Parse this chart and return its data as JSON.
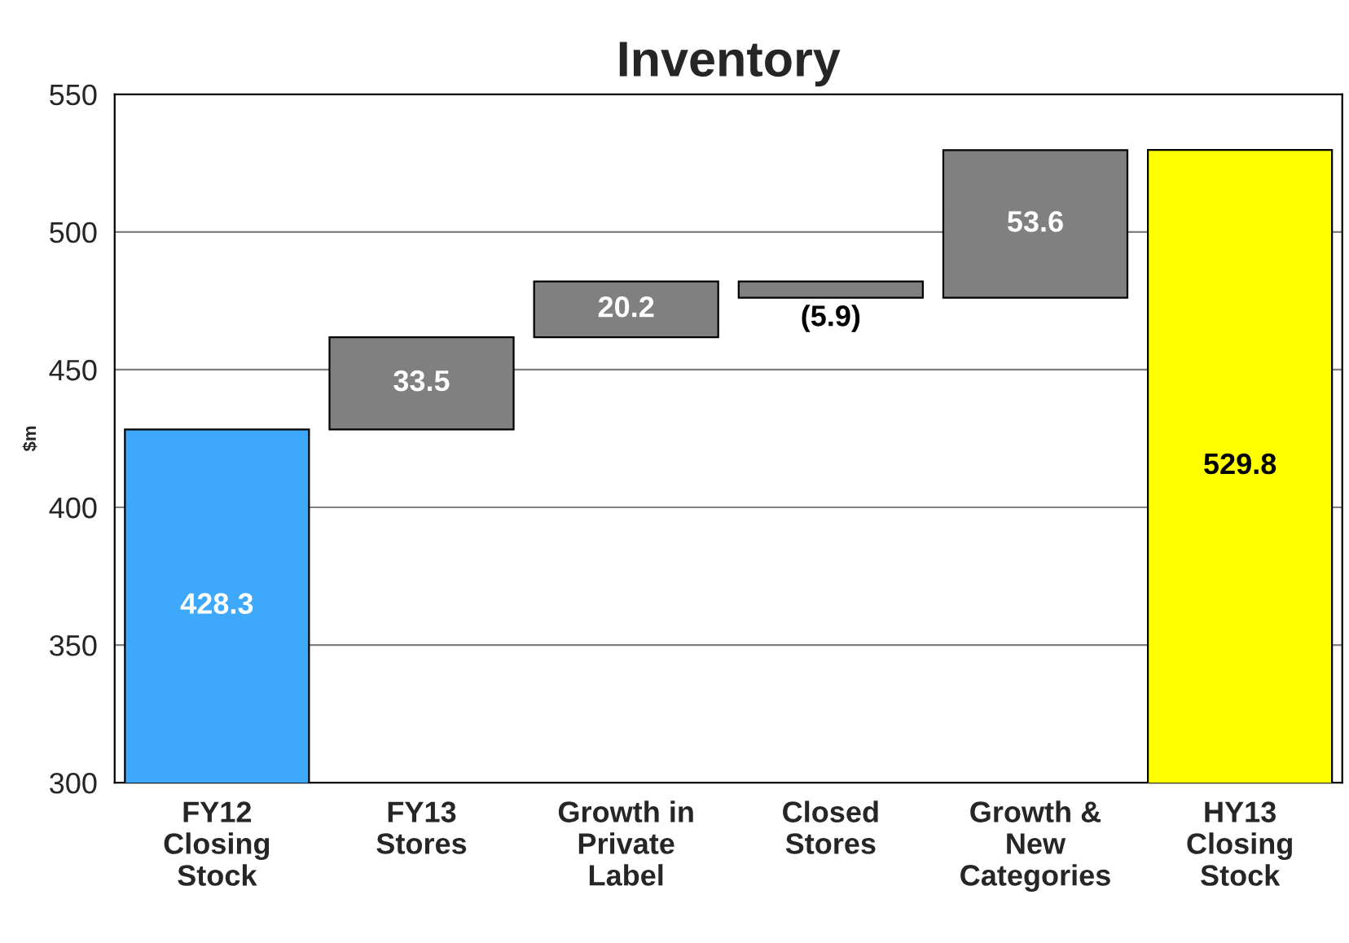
{
  "chart_data": {
    "type": "bar",
    "title": "Inventory",
    "ylabel": "$m",
    "categories": [
      "FY12\nClosing\nStock",
      "FY13\nStores",
      "Growth in\nPrivate\nLabel",
      "Closed\nStores",
      "Growth &\nNew\nCategories",
      "HY13\nClosing\nStock"
    ],
    "values": [
      428.3,
      33.5,
      20.2,
      -5.9,
      53.6,
      529.8
    ],
    "base": [
      0,
      428.3,
      461.8,
      482.0,
      476.1,
      0
    ],
    "value_labels": [
      "428.3",
      "33.5",
      "20.2",
      "(5.9)",
      "53.6",
      "529.8"
    ],
    "colors": [
      "#3ea8fb",
      "#808080",
      "#808080",
      "#808080",
      "#808080",
      "#ffff00"
    ],
    "ylim": [
      300,
      550
    ],
    "yticks": [
      300,
      350,
      400,
      450,
      500,
      550
    ],
    "grid": "y"
  }
}
